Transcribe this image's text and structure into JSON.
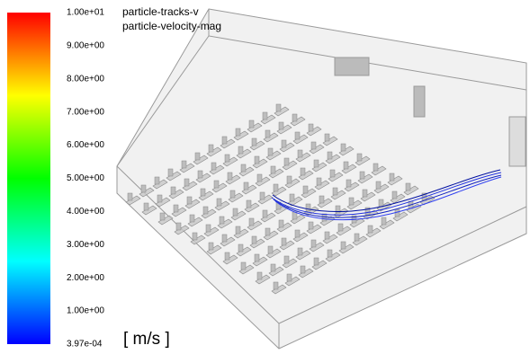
{
  "legend": {
    "labels": [
      "1.00e+01",
      "9.00e+00",
      "8.00e+00",
      "7.00e+00",
      "6.00e+00",
      "5.00e+00",
      "4.00e+00",
      "3.00e+00",
      "2.00e+00",
      "1.00e+00",
      "3.97e-04"
    ],
    "unit": "[ m/s ]"
  },
  "header": {
    "lines": [
      "particle-tracks-v",
      "particle-velocity-mag"
    ]
  }
}
